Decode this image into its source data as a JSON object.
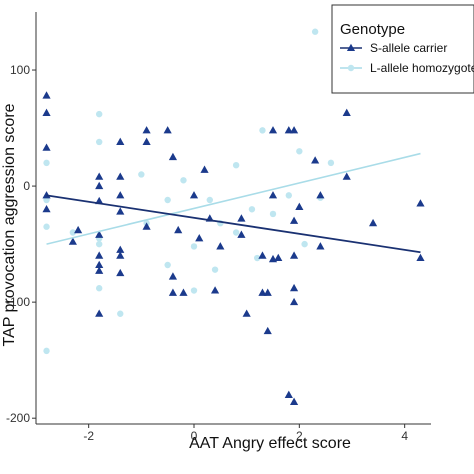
{
  "chart_data": {
    "type": "scatter",
    "xlabel": "AAT Angry effect score",
    "ylabel": "TAP provocation aggression score",
    "xlim": [
      -3,
      4.5
    ],
    "ylim": [
      -205,
      150
    ],
    "x_ticks": [
      -2,
      0,
      2,
      4
    ],
    "y_ticks": [
      -200,
      -100,
      0,
      100
    ],
    "x_tick_labels": [
      "-2",
      "0",
      "2",
      "4"
    ],
    "y_tick_labels": [
      "-200",
      "-100",
      "0",
      "100"
    ],
    "grid": false,
    "legend": {
      "title": "Genotype",
      "position": "top-right",
      "entries": [
        "S-allele carrier",
        "L-allele homozygote"
      ]
    },
    "series": [
      {
        "name": "S-allele carrier",
        "color": "#1b3a8c",
        "line_color": "#1a3172",
        "marker": "triangle",
        "points": [
          [
            -2.8,
            78
          ],
          [
            -2.8,
            63
          ],
          [
            -2.8,
            33
          ],
          [
            -2.8,
            -8
          ],
          [
            -2.8,
            -20
          ],
          [
            -2.3,
            -48
          ],
          [
            -2.2,
            -38
          ],
          [
            -1.8,
            8
          ],
          [
            -1.8,
            0
          ],
          [
            -1.8,
            -13
          ],
          [
            -1.8,
            -42
          ],
          [
            -1.8,
            -60
          ],
          [
            -1.8,
            -68
          ],
          [
            -1.8,
            -73
          ],
          [
            -1.8,
            -110
          ],
          [
            -1.4,
            -8
          ],
          [
            -1.4,
            -22
          ],
          [
            -1.4,
            -60
          ],
          [
            -1.4,
            -75
          ],
          [
            -1.4,
            38
          ],
          [
            -1.4,
            8
          ],
          [
            -1.4,
            -55
          ],
          [
            -0.9,
            48
          ],
          [
            -0.9,
            38
          ],
          [
            -0.9,
            -35
          ],
          [
            -0.5,
            48
          ],
          [
            -0.4,
            25
          ],
          [
            -0.4,
            -78
          ],
          [
            -0.3,
            -38
          ],
          [
            -0.2,
            -92
          ],
          [
            -0.4,
            -92
          ],
          [
            0.0,
            -8
          ],
          [
            0.1,
            -45
          ],
          [
            0.2,
            14
          ],
          [
            0.3,
            -28
          ],
          [
            0.5,
            -52
          ],
          [
            0.4,
            -90
          ],
          [
            0.9,
            -42
          ],
          [
            1.0,
            -110
          ],
          [
            0.9,
            -28
          ],
          [
            1.3,
            -60
          ],
          [
            1.3,
            -92
          ],
          [
            1.4,
            -125
          ],
          [
            1.5,
            48
          ],
          [
            1.4,
            -92
          ],
          [
            1.5,
            -8
          ],
          [
            1.5,
            -63
          ],
          [
            1.6,
            -62
          ],
          [
            1.8,
            48
          ],
          [
            1.9,
            48
          ],
          [
            1.9,
            -60
          ],
          [
            1.9,
            -30
          ],
          [
            1.9,
            -88
          ],
          [
            1.9,
            -100
          ],
          [
            1.8,
            -180
          ],
          [
            1.9,
            -186
          ],
          [
            2.0,
            -18
          ],
          [
            2.3,
            22
          ],
          [
            2.4,
            -8
          ],
          [
            2.4,
            -52
          ],
          [
            2.9,
            63
          ],
          [
            2.9,
            8
          ],
          [
            3.4,
            -32
          ],
          [
            4.3,
            -15
          ],
          [
            4.3,
            -62
          ]
        ],
        "fit": [
          [
            -2.8,
            -8
          ],
          [
            4.3,
            -57
          ]
        ]
      },
      {
        "name": "L-allele homozygote",
        "color": "#bfe6f0",
        "line_color": "#a9dce8",
        "marker": "circle",
        "points": [
          [
            -2.8,
            -35
          ],
          [
            -2.8,
            -142
          ],
          [
            -2.8,
            -12
          ],
          [
            -2.8,
            20
          ],
          [
            -2.3,
            -40
          ],
          [
            -1.8,
            62
          ],
          [
            -1.8,
            -45
          ],
          [
            -1.8,
            -88
          ],
          [
            -1.8,
            -50
          ],
          [
            -1.8,
            38
          ],
          [
            -1.4,
            -110
          ],
          [
            -1.0,
            10
          ],
          [
            -0.9,
            -32
          ],
          [
            -0.5,
            -12
          ],
          [
            -0.5,
            -68
          ],
          [
            -0.2,
            5
          ],
          [
            0.0,
            -52
          ],
          [
            0.0,
            -90
          ],
          [
            0.3,
            -12
          ],
          [
            0.4,
            -72
          ],
          [
            0.5,
            -32
          ],
          [
            0.8,
            -40
          ],
          [
            0.8,
            18
          ],
          [
            1.1,
            -20
          ],
          [
            1.2,
            -62
          ],
          [
            1.3,
            48
          ],
          [
            1.5,
            -24
          ],
          [
            1.8,
            -8
          ],
          [
            2.0,
            30
          ],
          [
            2.1,
            -50
          ],
          [
            2.3,
            133
          ],
          [
            2.4,
            -10
          ],
          [
            2.6,
            20
          ]
        ],
        "fit": [
          [
            -2.8,
            -50
          ],
          [
            4.3,
            28
          ]
        ]
      }
    ]
  }
}
